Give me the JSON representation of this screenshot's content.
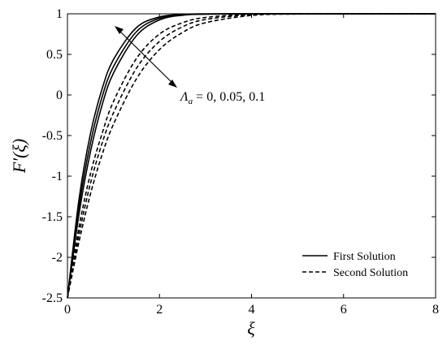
{
  "chart_data": {
    "type": "line",
    "xlabel": "ξ",
    "ylabel": "F′(ξ)",
    "xlim": [
      0,
      8
    ],
    "ylim": [
      -2.5,
      1
    ],
    "xticks": [
      0,
      2,
      4,
      6,
      8
    ],
    "yticks": [
      -2.5,
      -2,
      -1.5,
      -1,
      -0.5,
      0,
      0.5,
      1
    ],
    "xtick_labels": [
      "0",
      "2",
      "4",
      "6",
      "8"
    ],
    "ytick_labels": [
      "-2.5",
      "-2",
      "-1.5",
      "-1",
      "-0.5",
      "0",
      "0.5",
      "1"
    ],
    "grid": false,
    "legend_position": "bottom-right",
    "legend": [
      {
        "label": "First Solution",
        "style": "solid"
      },
      {
        "label": "Second Solution",
        "style": "dashed"
      }
    ],
    "annotation": {
      "symbol": "Λ",
      "subscript": "a",
      "values": " = 0, 0.05, 0.1"
    },
    "series": [
      {
        "style": "solid",
        "x": [
          0,
          0.25,
          0.5,
          0.75,
          1,
          1.5,
          2,
          2.5,
          3,
          4,
          5,
          6,
          7,
          8
        ],
        "y": [
          -2.5,
          -1.29,
          -0.476,
          0.07,
          0.437,
          0.83,
          0.961,
          0.993,
          1.0,
          1.0,
          1.0,
          1.0,
          1.0,
          1.0
        ]
      },
      {
        "style": "solid",
        "x": [
          0,
          0.25,
          0.5,
          0.75,
          1,
          1.5,
          2,
          2.5,
          3,
          4,
          5,
          6,
          7,
          8
        ],
        "y": [
          -2.5,
          -1.38,
          -0.59,
          -0.03,
          0.35,
          0.78,
          0.945,
          0.988,
          0.997,
          1.0,
          1.0,
          1.0,
          1.0,
          1.0
        ]
      },
      {
        "style": "solid",
        "x": [
          0,
          0.25,
          0.5,
          0.75,
          1,
          1.5,
          2,
          2.5,
          3,
          4,
          5,
          6,
          7,
          8
        ],
        "y": [
          -2.5,
          -1.47,
          -0.7,
          -0.13,
          0.27,
          0.73,
          0.925,
          0.982,
          0.995,
          1.0,
          1.0,
          1.0,
          1.0,
          1.0
        ]
      },
      {
        "style": "dashed",
        "x": [
          0,
          0.25,
          0.5,
          0.75,
          1,
          1.5,
          2,
          2.5,
          3,
          4,
          5,
          6,
          7,
          8
        ],
        "y": [
          -2.5,
          -1.63,
          -0.97,
          -0.48,
          -0.08,
          0.45,
          0.75,
          0.89,
          0.955,
          0.995,
          1.0,
          1.0,
          1.0,
          1.0
        ]
      },
      {
        "style": "dashed",
        "x": [
          0,
          0.25,
          0.5,
          0.75,
          1,
          1.5,
          2,
          2.5,
          3,
          4,
          5,
          6,
          7,
          8
        ],
        "y": [
          -2.5,
          -1.72,
          -1.09,
          -0.6,
          -0.22,
          0.33,
          0.66,
          0.84,
          0.93,
          0.99,
          1.0,
          1.0,
          1.0,
          1.0
        ]
      },
      {
        "style": "dashed",
        "x": [
          0,
          0.25,
          0.5,
          0.75,
          1,
          1.5,
          2,
          2.5,
          3,
          4,
          5,
          6,
          7,
          8
        ],
        "y": [
          -2.5,
          -1.81,
          -1.22,
          -0.74,
          -0.36,
          0.2,
          0.56,
          0.77,
          0.89,
          0.98,
          0.997,
          1.0,
          1.0,
          1.0
        ]
      }
    ]
  }
}
